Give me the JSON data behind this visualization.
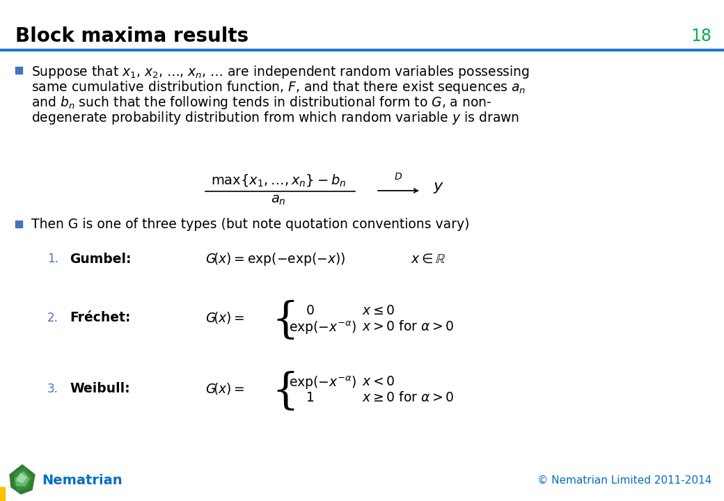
{
  "title": "Block maxima results",
  "slide_number": "18",
  "title_color": "#000000",
  "title_bar_color": "#1F78D1",
  "slide_number_color": "#00B050",
  "bullet_color": "#4472C4",
  "background_color": "#FFFFFF",
  "nematrian_color": "#0070C0",
  "copyright_color": "#0070C0",
  "footer_text": "Nematrian",
  "copyright_text": "© Nematrian Limited 2011-2014",
  "yellow_bar_color": "#FFC000",
  "gem_color1": "#2E7D32",
  "gem_color2": "#4CAF50",
  "gem_color3": "#A5D6A7"
}
